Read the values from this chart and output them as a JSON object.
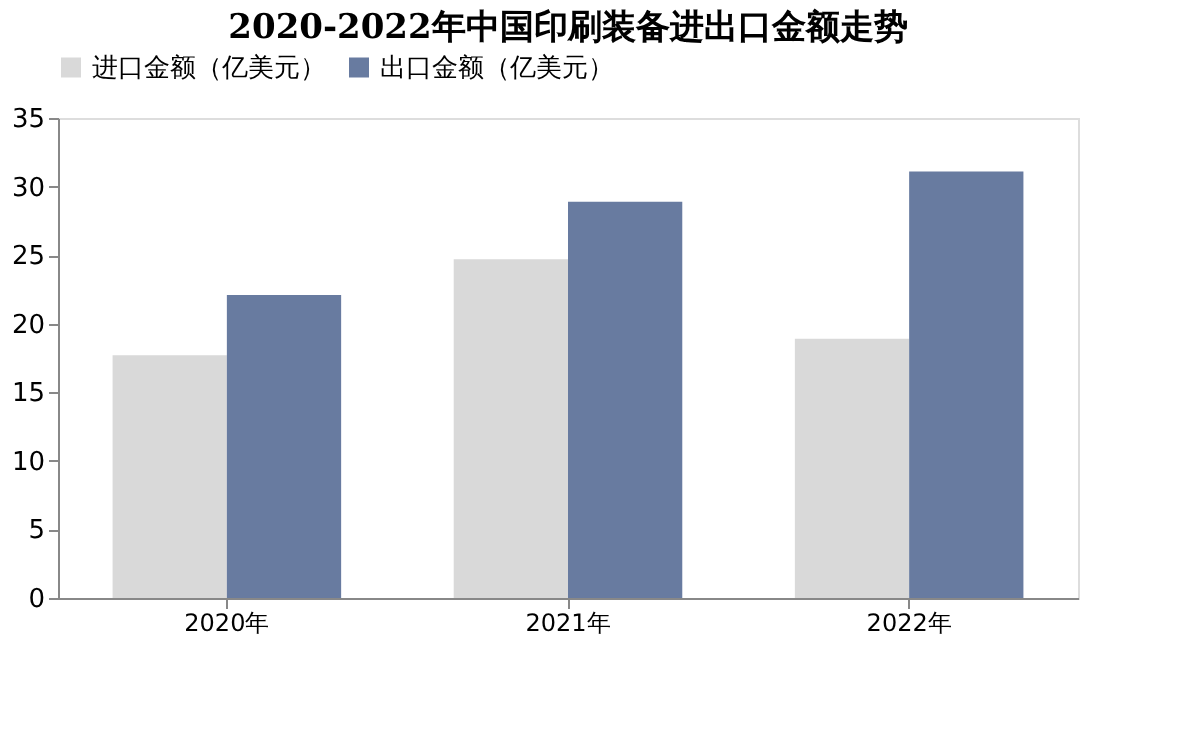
{
  "chart_data": {
    "type": "bar",
    "title": "2020-2022年中国印刷装备进出口金额走势",
    "categories": [
      "2020年",
      "2021年",
      "2022年"
    ],
    "series": [
      {
        "name": "进口金额（亿美元）",
        "color": "#d9d9d9",
        "values": [
          17.7,
          24.7,
          18.9
        ]
      },
      {
        "name": "出口金额（亿美元）",
        "color": "#687ba0",
        "values": [
          22.1,
          28.9,
          31.1
        ]
      }
    ],
    "ylim": [
      0,
      35
    ],
    "yticks": [
      0,
      5,
      10,
      15,
      20,
      25,
      30,
      35
    ],
    "grid": false,
    "legend": "top"
  }
}
